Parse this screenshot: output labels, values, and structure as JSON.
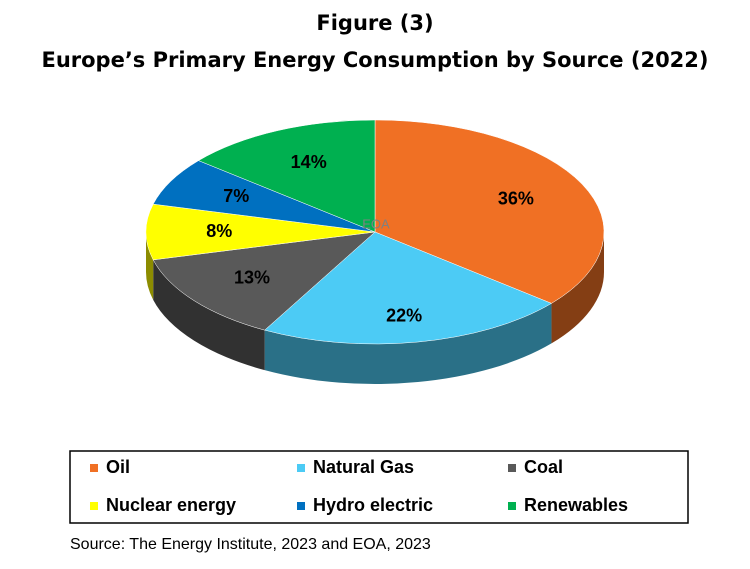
{
  "chart_data": {
    "type": "pie3d",
    "title": "Figure (3)",
    "subtitle": "Europe’s Primary Energy Consumption by Source (2022)",
    "watermark": "EOA",
    "source": "Source: The Energy Institute, 2023 and EOA, 2023",
    "categories": [
      "Oil",
      "Natural Gas",
      "Coal",
      "Nuclear energy",
      "Hydro electric",
      "Renewables"
    ],
    "values": [
      36,
      22,
      13,
      8,
      7,
      14
    ],
    "value_labels": [
      "36%",
      "22%",
      "13%",
      "8%",
      "7%",
      "14%"
    ],
    "colors": [
      "#f07024",
      "#4ccbf5",
      "#595959",
      "#ffff00",
      "#0070c0",
      "#00b050"
    ],
    "legend": "bottom"
  }
}
